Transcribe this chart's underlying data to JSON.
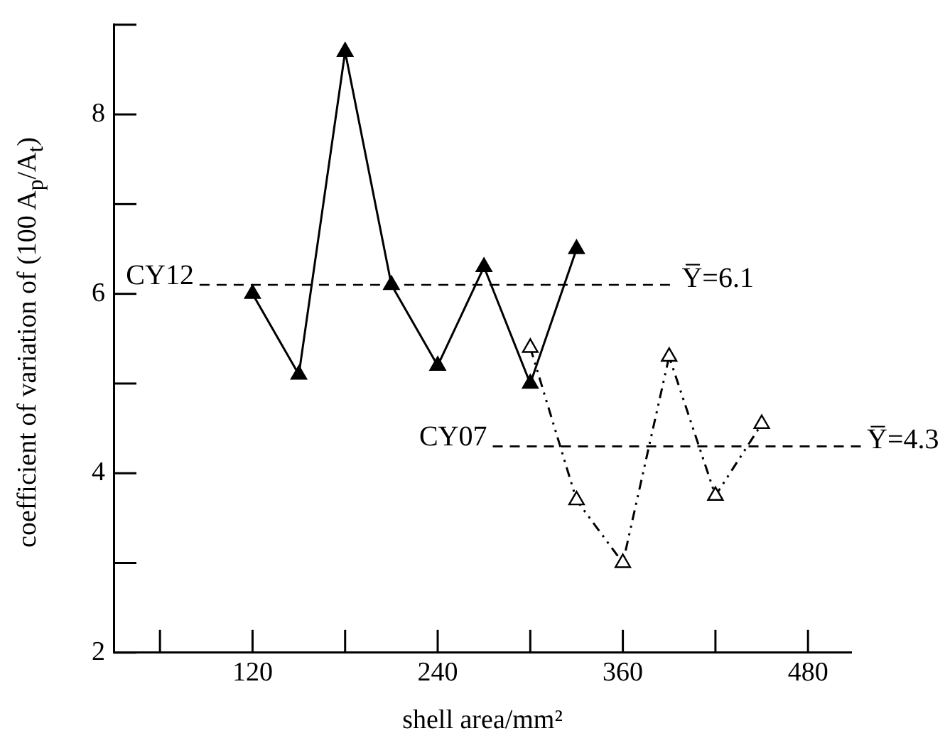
{
  "chart_data": {
    "type": "line",
    "xlabel": "shell area/mm²",
    "ylabel": "coefficient of variation of (100 A$_{p}$/A$_{t}$)",
    "xlim": [
      30,
      508
    ],
    "xticks": [
      {
        "value": 60,
        "label": null
      },
      120,
      {
        "value": 180,
        "label": null
      },
      240,
      {
        "value": 300,
        "label": null
      },
      360,
      {
        "value": 420,
        "label": null
      },
      480
    ],
    "ylim": [
      2,
      9
    ],
    "yticks": [
      2,
      {
        "value": 3,
        "label": null
      },
      4,
      {
        "value": 5,
        "label": null
      },
      6,
      {
        "value": 7,
        "label": null
      },
      8,
      {
        "value": 9,
        "label": null
      }
    ],
    "grid": false,
    "legend": false,
    "marker": "triangle",
    "series": [
      {
        "color": "#000000",
        "line_style": "solid",
        "x": [
          120,
          150,
          180,
          210,
          240,
          270,
          300,
          330
        ],
        "values": [
          6.0,
          5.1,
          8.7,
          6.1,
          5.2,
          6.3,
          5.0,
          6.5
        ]
      },
      {
        "color": "#000000",
        "line_style": "dashed",
        "x": [
          300,
          330,
          360,
          390,
          420,
          450
        ],
        "values": [
          5.4,
          3.7,
          3.0,
          5.3,
          3.75,
          4.55
        ]
      }
    ],
    "annotations": [
      {
        "text": "CY12",
        "x": 82,
        "y": 6.1
      },
      {
        "text": "CY07",
        "x": 272,
        "y": 4.3
      }
    ],
    "ref_lines": [
      {
        "axis": "y",
        "value": 6.1,
        "label": "Y̅=6.1",
        "line_style": "dashed",
        "color": "#000000"
      },
      {
        "axis": "y",
        "value": 4.3,
        "label": "Y̅=4.3",
        "line_style": "dashed",
        "color": "#000000"
      }
    ]
  }
}
